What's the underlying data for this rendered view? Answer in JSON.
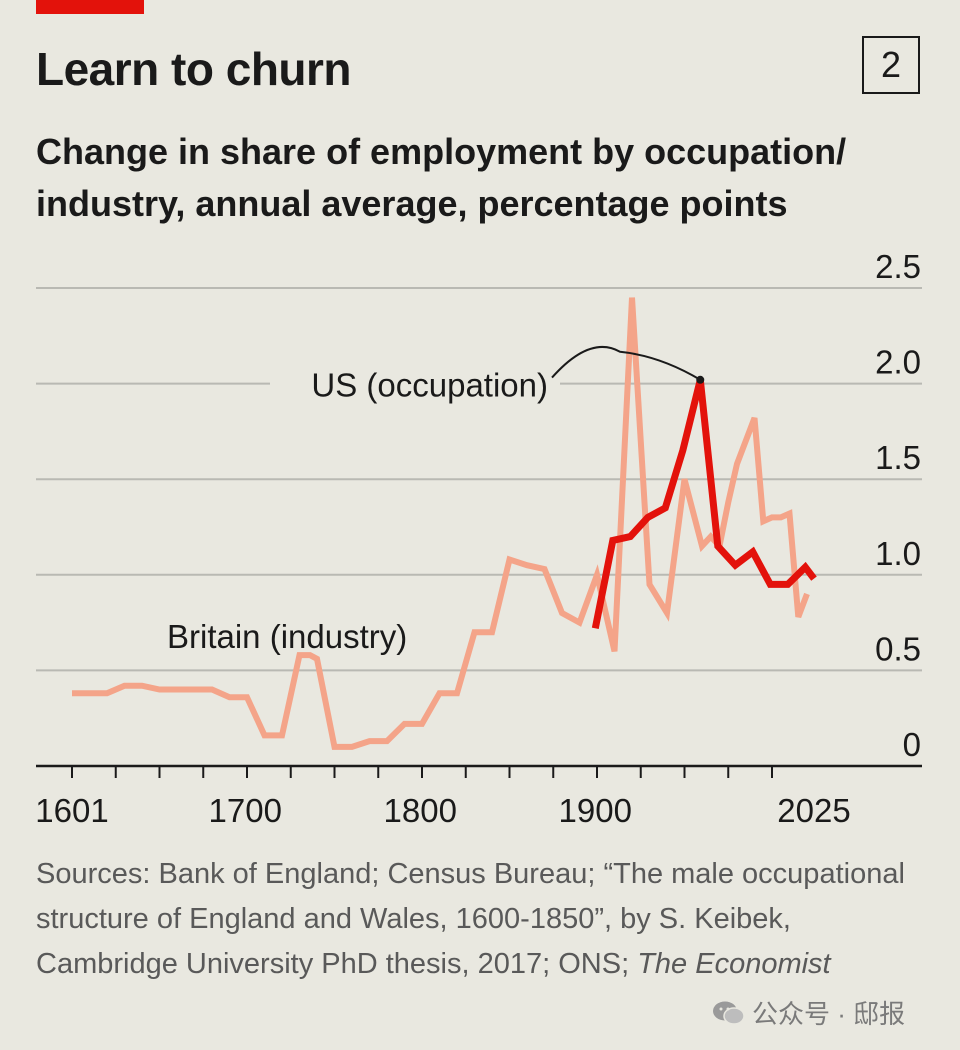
{
  "badge": "2",
  "header": {
    "title": "Learn to churn",
    "subtitle": "Change in share of employment by occupation/ industry, annual average, percentage points"
  },
  "chart_data": {
    "type": "line",
    "title": "Learn to churn",
    "subtitle": "Change in share of employment by occupation/ industry, annual average, percentage points",
    "xlabel": "",
    "ylabel": "",
    "xlim": [
      1601,
      2025
    ],
    "ylim": [
      0,
      2.5
    ],
    "x_ticks": [
      "1601",
      "1700",
      "1800",
      "1900",
      "2025"
    ],
    "y_ticks": [
      "2.5",
      "2.0",
      "1.5",
      "1.0",
      "0.5",
      "0"
    ],
    "grid": true,
    "colors": {
      "us": "#e3120b",
      "britain": "#f4a489"
    },
    "series": [
      {
        "name": "Britain (industry)",
        "color": "#f4a489",
        "x": [
          1601,
          1621,
          1631,
          1641,
          1651,
          1661,
          1671,
          1681,
          1691,
          1701,
          1711,
          1721,
          1731,
          1737,
          1741,
          1751,
          1761,
          1771,
          1781,
          1791,
          1801,
          1811,
          1821,
          1831,
          1841,
          1851,
          1861,
          1871,
          1881,
          1891,
          1901,
          1911,
          1921,
          1931,
          1941,
          1951,
          1961,
          1966,
          1971,
          1976,
          1981,
          1991,
          1996,
          2001,
          2006,
          2011,
          2016,
          2021
        ],
        "y": [
          0.38,
          0.38,
          0.42,
          0.42,
          0.4,
          0.4,
          0.4,
          0.4,
          0.36,
          0.36,
          0.16,
          0.16,
          0.58,
          0.58,
          0.56,
          0.1,
          0.1,
          0.13,
          0.13,
          0.22,
          0.22,
          0.38,
          0.38,
          0.7,
          0.7,
          1.08,
          1.05,
          1.03,
          0.8,
          0.75,
          1.0,
          0.6,
          2.45,
          0.95,
          0.8,
          1.5,
          1.15,
          1.2,
          1.15,
          1.38,
          1.58,
          1.82,
          1.28,
          1.3,
          1.3,
          1.32,
          0.78,
          0.9
        ]
      },
      {
        "name": "US (occupation)",
        "color": "#e3120b",
        "x": [
          1900,
          1910,
          1920,
          1930,
          1940,
          1950,
          1960,
          1970,
          1980,
          1990,
          2000,
          2010,
          2020,
          2025
        ],
        "y": [
          0.72,
          1.18,
          1.2,
          1.3,
          1.35,
          1.65,
          2.02,
          1.15,
          1.05,
          1.12,
          0.95,
          0.95,
          1.04,
          0.98
        ]
      }
    ],
    "annotations": [
      "US (occupation)",
      "Britain (industry)"
    ]
  },
  "source": {
    "text": "Sources: Bank of England; Census Bureau; “The male occupational structure of England and Wales, 1600-1850”, by S. Keibek, Cambridge University PhD thesis, 2017; ONS;",
    "italic": "The Economist"
  },
  "watermark": {
    "text": "公众号 · 邸报",
    "icon": "wechat-icon"
  }
}
